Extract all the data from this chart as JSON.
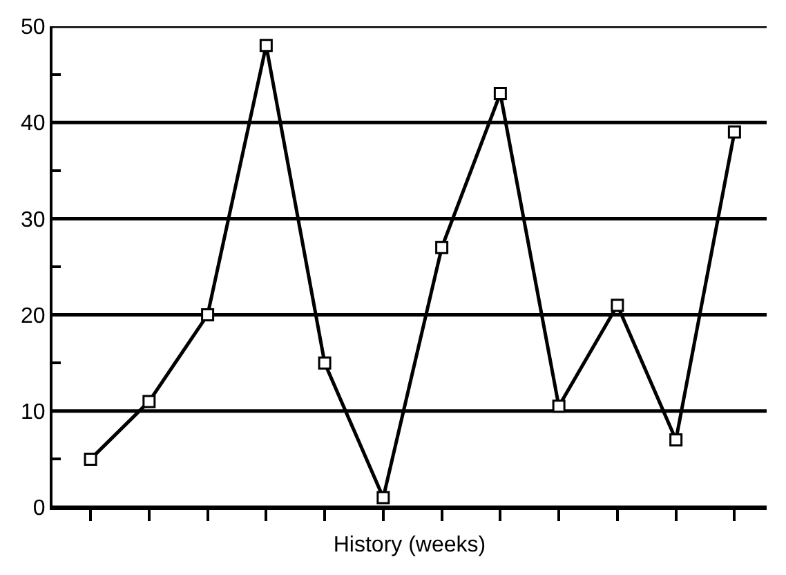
{
  "chart_data": {
    "type": "line",
    "xlabel": "History (weeks)",
    "categories": [
      null,
      null,
      null,
      null,
      null,
      null,
      null,
      null,
      null,
      null,
      null,
      null
    ],
    "series": [
      {
        "color": "#000000",
        "values": [
          5,
          11,
          20,
          48,
          15,
          1,
          27,
          43,
          10.5,
          21,
          7,
          39
        ]
      }
    ],
    "ylim": [
      0,
      50
    ],
    "yticks": [
      0,
      {
        "value": 5,
        "label": null
      },
      10,
      {
        "value": 15,
        "label": null
      },
      20,
      {
        "value": 25,
        "label": null
      },
      30,
      {
        "value": 35,
        "label": null
      },
      40,
      {
        "value": 45,
        "label": null
      },
      50
    ],
    "grid": "y",
    "tick_labels": "y",
    "marker": "square",
    "line_style": "solid",
    "legend": false
  }
}
